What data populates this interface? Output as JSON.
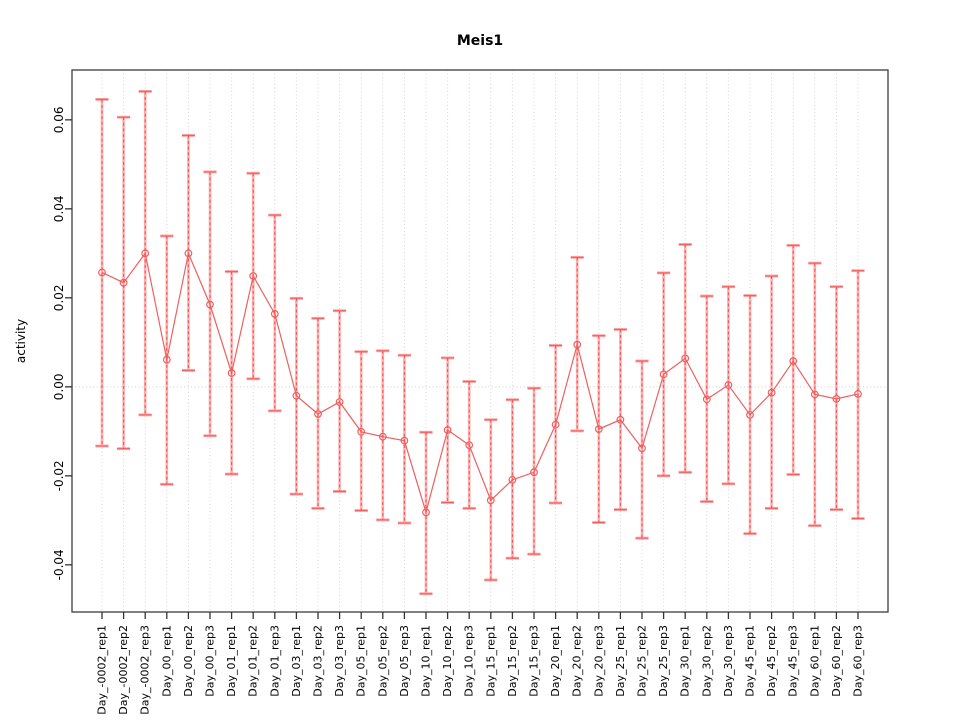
{
  "page": {
    "title": "Meis1"
  },
  "chart_data": {
    "type": "line",
    "title": "Meis1",
    "xlabel": "",
    "ylabel": "activity",
    "ylim": [
      -0.0506,
      0.0712
    ],
    "yticks": [
      -0.04,
      -0.02,
      0.0,
      0.02,
      0.04,
      0.06
    ],
    "grid": "dotted vertical gridline at every category; dotted horizontal line at y=0",
    "legend_position": "none",
    "marker": "open-circle",
    "error_bars": true,
    "categories": [
      "Day_-0002_rep1",
      "Day_-0002_rep2",
      "Day_-0002_rep3",
      "Day_00_rep1",
      "Day_00_rep2",
      "Day_00_rep3",
      "Day_01_rep1",
      "Day_01_rep2",
      "Day_01_rep3",
      "Day_03_rep1",
      "Day_03_rep2",
      "Day_03_rep3",
      "Day_05_rep1",
      "Day_05_rep2",
      "Day_05_rep3",
      "Day_10_rep1",
      "Day_10_rep2",
      "Day_10_rep3",
      "Day_15_rep1",
      "Day_15_rep2",
      "Day_15_rep3",
      "Day_20_rep1",
      "Day_20_rep2",
      "Day_20_rep3",
      "Day_25_rep1",
      "Day_25_rep2",
      "Day_25_rep3",
      "Day_30_rep1",
      "Day_30_rep2",
      "Day_30_rep3",
      "Day_45_rep1",
      "Day_45_rep2",
      "Day_45_rep3",
      "Day_60_rep1",
      "Day_60_rep2",
      "Day_60_rep3"
    ],
    "series": [
      {
        "name": "activity",
        "values": [
          0.0257,
          0.0234,
          0.03,
          0.0061,
          0.03,
          0.0185,
          0.0031,
          0.0249,
          0.0164,
          -0.002,
          -0.0061,
          -0.0034,
          -0.0101,
          -0.0112,
          -0.0121,
          -0.0282,
          -0.0097,
          -0.0131,
          -0.0255,
          -0.0209,
          -0.0192,
          -0.0085,
          0.0095,
          -0.0095,
          -0.0074,
          -0.0138,
          0.0028,
          0.0064,
          -0.0028,
          0.0004,
          -0.0063,
          -0.0013,
          0.0058,
          -0.0017,
          -0.0027,
          -0.0016
        ],
        "lower": [
          -0.0133,
          -0.0139,
          -0.0063,
          -0.0219,
          0.0037,
          -0.011,
          -0.0196,
          0.0018,
          -0.0054,
          -0.0241,
          -0.0273,
          -0.0235,
          -0.0278,
          -0.0299,
          -0.0306,
          -0.0465,
          -0.026,
          -0.0273,
          -0.0434,
          -0.0385,
          -0.0376,
          -0.0261,
          -0.0099,
          -0.0305,
          -0.0276,
          -0.034,
          -0.02,
          -0.0192,
          -0.0258,
          -0.0218,
          -0.033,
          -0.0273,
          -0.0197,
          -0.0312,
          -0.0276,
          -0.0296
        ],
        "upper": [
          0.0646,
          0.0606,
          0.0664,
          0.0339,
          0.0565,
          0.0483,
          0.0259,
          0.048,
          0.0386,
          0.0199,
          0.0154,
          0.0171,
          0.0079,
          0.0081,
          0.0071,
          -0.0102,
          0.0065,
          0.0012,
          -0.0074,
          -0.0029,
          -0.0003,
          0.0093,
          0.0291,
          0.0115,
          0.0129,
          0.0058,
          0.0256,
          0.032,
          0.0204,
          0.0225,
          0.0205,
          0.0249,
          0.0318,
          0.0278,
          0.0225,
          0.0261
        ]
      }
    ],
    "colors": {
      "line": "#ef5f5f",
      "marker": "#ef5f5f",
      "errorbar_band": "#ffafaf",
      "errorbar_cap": "#ff9d9d",
      "errorbar_dash": "#ee5252",
      "gridline": "#d6d6d6",
      "zero_line": "#cfcfcf",
      "axis_box": "#3c3c3c",
      "tick": "#333333",
      "text": "#000000"
    }
  }
}
